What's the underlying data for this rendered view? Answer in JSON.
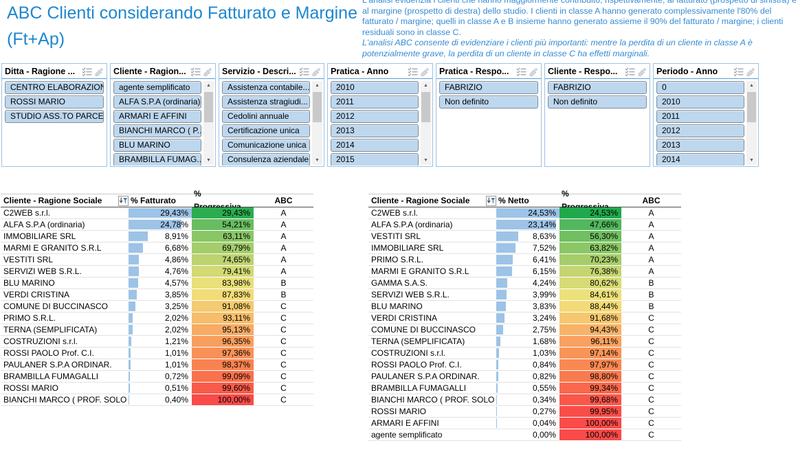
{
  "title": "ABC Clienti considerando Fatturato e Margine (Ft+Ap)",
  "description": {
    "main": "L'analisi evidenzia i clienti che hanno maggiormente contribuito, rispettivamente, al fatturato (prospetto di sinistra) e al margine (prospetto di destra) dello studio. I clienti in classe A hanno generato complessivamente l'80% del fatturato / margine; quelli in classe A e B insieme hanno generato assieme il 90% del fatturato / margine; i clienti residuali sono in classe C.",
    "italic": "L'analisi ABC consente di evidenziare i clienti più importanti: mentre la perdita di un cliente in classe A è potenzialmente grave, la perdita di un cliente in classe C ha effetti marginali."
  },
  "filters": [
    {
      "title": "Ditta - Ragione ...",
      "items": [
        "CENTRO ELABORAZION...",
        "ROSSI MARIO",
        "STUDIO ASS.TO PARCE..."
      ],
      "scrollbar": false,
      "cut": false
    },
    {
      "title": "Cliente - Ragion...",
      "items": [
        "agente semplificato",
        "ALFA S.P.A (ordinaria)",
        "ARMARI E AFFINI",
        "BIANCHI MARCO ( P...",
        "BLU MARINO",
        "BRAMBILLA FUMAG..."
      ],
      "scrollbar": true,
      "cut": true
    },
    {
      "title": "Servizio - Descri...",
      "items": [
        "Assistenza contabile...",
        "Assistenza stragiudi...",
        "Cedolini annuale",
        "Certificazione unica",
        "Comunicazione unica",
        "Consulenza aziendale"
      ],
      "scrollbar": true,
      "cut": true
    },
    {
      "title": "Pratica - Anno",
      "items": [
        "2010",
        "2011",
        "2012",
        "2013",
        "2014",
        "2015"
      ],
      "scrollbar": true,
      "cut": true
    },
    {
      "title": "Pratica - Respo...",
      "items": [
        "FABRIZIO",
        "Non definito"
      ],
      "scrollbar": false,
      "cut": false
    },
    {
      "title": "Cliente - Respo...",
      "items": [
        "FABRIZIO",
        "Non definito"
      ],
      "scrollbar": false,
      "cut": false
    },
    {
      "title": "Periodo - Anno",
      "items": [
        "0",
        "2010",
        "2011",
        "2012",
        "2013",
        "2014"
      ],
      "scrollbar": true,
      "cut": true
    }
  ],
  "tables": [
    {
      "headers": {
        "name": "Cliente - Ragione Sociale",
        "value": "% Fatturato",
        "progressive": "% Progressiva",
        "abc": "ABC"
      },
      "bar_max": 29.43,
      "rows": [
        {
          "name": "C2WEB s.r.l.",
          "value": 29.43,
          "value_label": "29,43%",
          "prog": 29.43,
          "prog_label": "29,43%",
          "abc": "A"
        },
        {
          "name": "ALFA S.P.A (ordinaria)",
          "value": 24.78,
          "value_label": "24,78%",
          "prog": 54.21,
          "prog_label": "54,21%",
          "abc": "A"
        },
        {
          "name": "IMMOBILIARE SRL",
          "value": 8.91,
          "value_label": "8,91%",
          "prog": 63.11,
          "prog_label": "63,11%",
          "abc": "A"
        },
        {
          "name": "MARMI E GRANITO S.R.L",
          "value": 6.68,
          "value_label": "6,68%",
          "prog": 69.79,
          "prog_label": "69,79%",
          "abc": "A"
        },
        {
          "name": "VESTITI SRL",
          "value": 4.86,
          "value_label": "4,86%",
          "prog": 74.65,
          "prog_label": "74,65%",
          "abc": "A"
        },
        {
          "name": "SERVIZI WEB S.R.L.",
          "value": 4.76,
          "value_label": "4,76%",
          "prog": 79.41,
          "prog_label": "79,41%",
          "abc": "A"
        },
        {
          "name": "BLU MARINO",
          "value": 4.57,
          "value_label": "4,57%",
          "prog": 83.98,
          "prog_label": "83,98%",
          "abc": "B"
        },
        {
          "name": "VERDI CRISTINA",
          "value": 3.85,
          "value_label": "3,85%",
          "prog": 87.83,
          "prog_label": "87,83%",
          "abc": "B"
        },
        {
          "name": "COMUNE DI BUCCINASCO",
          "value": 3.25,
          "value_label": "3,25%",
          "prog": 91.08,
          "prog_label": "91,08%",
          "abc": "C"
        },
        {
          "name": "PRIMO S.R.L.",
          "value": 2.02,
          "value_label": "2,02%",
          "prog": 93.11,
          "prog_label": "93,11%",
          "abc": "C"
        },
        {
          "name": "TERNA  (SEMPLIFICATA)",
          "value": 2.02,
          "value_label": "2,02%",
          "prog": 95.13,
          "prog_label": "95,13%",
          "abc": "C"
        },
        {
          "name": "COSTRUZIONI s.r.l.",
          "value": 1.21,
          "value_label": "1,21%",
          "prog": 96.35,
          "prog_label": "96,35%",
          "abc": "C"
        },
        {
          "name": "ROSSI PAOLO Prof. C.I.",
          "value": 1.01,
          "value_label": "1,01%",
          "prog": 97.36,
          "prog_label": "97,36%",
          "abc": "C"
        },
        {
          "name": "PAULANER S.P.A ORDINAR.",
          "value": 1.01,
          "value_label": "1,01%",
          "prog": 98.37,
          "prog_label": "98,37%",
          "abc": "C"
        },
        {
          "name": "BRAMBILLA FUMAGALLI",
          "value": 0.72,
          "value_label": "0,72%",
          "prog": 99.09,
          "prog_label": "99,09%",
          "abc": "C"
        },
        {
          "name": "ROSSI MARIO",
          "value": 0.51,
          "value_label": "0,51%",
          "prog": 99.6,
          "prog_label": "99,60%",
          "abc": "C"
        },
        {
          "name": "BIANCHI MARCO ( PROF. SOLO IVA",
          "value": 0.4,
          "value_label": "0,40%",
          "prog": 100.0,
          "prog_label": "100,00%",
          "abc": "C"
        }
      ]
    },
    {
      "headers": {
        "name": "Cliente - Ragione Sociale",
        "value": "% Netto",
        "progressive": "% Progressiva",
        "abc": "ABC"
      },
      "bar_max": 24.53,
      "rows": [
        {
          "name": "C2WEB s.r.l.",
          "value": 24.53,
          "value_label": "24,53%",
          "prog": 24.53,
          "prog_label": "24,53%",
          "abc": "A"
        },
        {
          "name": "ALFA S.P.A (ordinaria)",
          "value": 23.14,
          "value_label": "23,14%",
          "prog": 47.66,
          "prog_label": "47,66%",
          "abc": "A"
        },
        {
          "name": "VESTITI SRL",
          "value": 8.63,
          "value_label": "8,63%",
          "prog": 56.3,
          "prog_label": "56,30%",
          "abc": "A"
        },
        {
          "name": "IMMOBILIARE SRL",
          "value": 7.52,
          "value_label": "7,52%",
          "prog": 63.82,
          "prog_label": "63,82%",
          "abc": "A"
        },
        {
          "name": "PRIMO S.R.L.",
          "value": 6.41,
          "value_label": "6,41%",
          "prog": 70.23,
          "prog_label": "70,23%",
          "abc": "A"
        },
        {
          "name": "MARMI E GRANITO S.R.L",
          "value": 6.15,
          "value_label": "6,15%",
          "prog": 76.38,
          "prog_label": "76,38%",
          "abc": "A"
        },
        {
          "name": "GAMMA S.A.S.",
          "value": 4.24,
          "value_label": "4,24%",
          "prog": 80.62,
          "prog_label": "80,62%",
          "abc": "B"
        },
        {
          "name": "SERVIZI WEB S.R.L.",
          "value": 3.99,
          "value_label": "3,99%",
          "prog": 84.61,
          "prog_label": "84,61%",
          "abc": "B"
        },
        {
          "name": "BLU MARINO",
          "value": 3.83,
          "value_label": "3,83%",
          "prog": 88.44,
          "prog_label": "88,44%",
          "abc": "B"
        },
        {
          "name": "VERDI CRISTINA",
          "value": 3.24,
          "value_label": "3,24%",
          "prog": 91.68,
          "prog_label": "91,68%",
          "abc": "C"
        },
        {
          "name": "COMUNE DI BUCCINASCO",
          "value": 2.75,
          "value_label": "2,75%",
          "prog": 94.43,
          "prog_label": "94,43%",
          "abc": "C"
        },
        {
          "name": "TERNA  (SEMPLIFICATA)",
          "value": 1.68,
          "value_label": "1,68%",
          "prog": 96.11,
          "prog_label": "96,11%",
          "abc": "C"
        },
        {
          "name": "COSTRUZIONI s.r.l.",
          "value": 1.03,
          "value_label": "1,03%",
          "prog": 97.14,
          "prog_label": "97,14%",
          "abc": "C"
        },
        {
          "name": "ROSSI PAOLO Prof. C.I.",
          "value": 0.84,
          "value_label": "0,84%",
          "prog": 97.97,
          "prog_label": "97,97%",
          "abc": "C"
        },
        {
          "name": "PAULANER S.P.A ORDINAR.",
          "value": 0.82,
          "value_label": "0,82%",
          "prog": 98.8,
          "prog_label": "98,80%",
          "abc": "C"
        },
        {
          "name": "BRAMBILLA FUMAGALLI",
          "value": 0.55,
          "value_label": "0,55%",
          "prog": 99.34,
          "prog_label": "99,34%",
          "abc": "C"
        },
        {
          "name": "BIANCHI MARCO ( PROF. SOLO IVA",
          "value": 0.34,
          "value_label": "0,34%",
          "prog": 99.68,
          "prog_label": "99,68%",
          "abc": "C"
        },
        {
          "name": "ROSSI MARIO",
          "value": 0.27,
          "value_label": "0,27%",
          "prog": 99.95,
          "prog_label": "99,95%",
          "abc": "C"
        },
        {
          "name": "ARMARI E AFFINI",
          "value": 0.04,
          "value_label": "0,04%",
          "prog": 100.0,
          "prog_label": "100,00%",
          "abc": "C"
        },
        {
          "name": "agente semplificato",
          "value": 0.0,
          "value_label": "0,00%",
          "prog": 100.0,
          "prog_label": "100,00%",
          "abc": "C"
        }
      ]
    }
  ],
  "icons": {
    "listbox_header": [
      "select-list-icon",
      "clear-filter-icon"
    ],
    "table_header": "sort-filter-icon",
    "scrollbar": [
      "scroll-up-arrow",
      "scroll-down-arrow"
    ]
  },
  "colors": {
    "accent_blue": "#1e87cf",
    "description_blue": "#348bd4",
    "bar_blue": "#9dc3e6",
    "listitem_bg": "#bdd7ee",
    "listitem_border": "#838b93",
    "box_border": "#9cc2e5",
    "header_rule": "#5b9bd5",
    "scale_green": "#1fa94c",
    "scale_yellow": "#efe27b",
    "scale_red": "#f94b49"
  }
}
